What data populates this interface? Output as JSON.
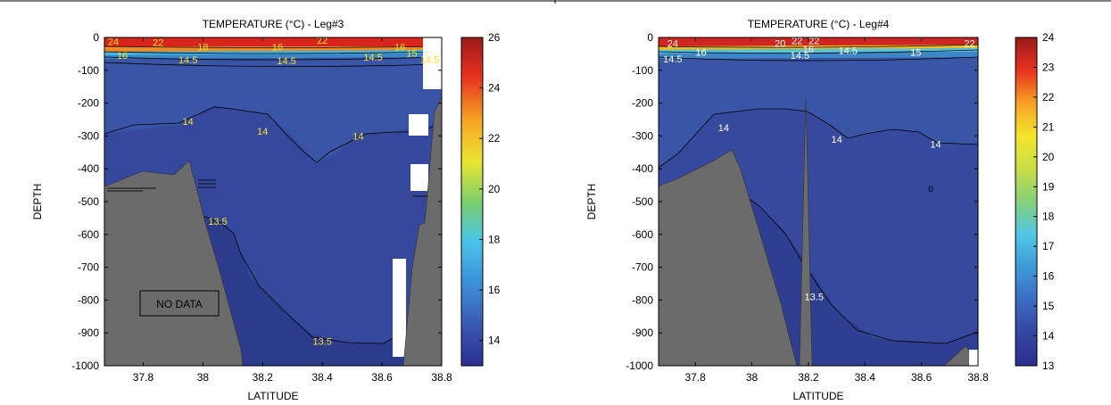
{
  "chart_data": [
    {
      "type": "heatmap",
      "title": "TEMPERATURE (°C) - Leg#3",
      "xlabel": "LATITUDE",
      "ylabel": "DEPTH",
      "xlim": [
        37.67,
        38.8
      ],
      "ylim": [
        -1000,
        0
      ],
      "xticks": [
        "37.8",
        "38",
        "38.2",
        "38.4",
        "38.6",
        "38.8"
      ],
      "yticks": [
        "0",
        "-100",
        "-200",
        "-300",
        "-400",
        "-500",
        "-600",
        "-700",
        "-800",
        "-900",
        "-1000"
      ],
      "colorbar": {
        "range": [
          13,
          26
        ],
        "ticks": [
          "26",
          "24",
          "22",
          "20",
          "18",
          "16",
          "14"
        ]
      },
      "annotation": "NO DATA",
      "contour_labels": [
        {
          "text": "24",
          "x": 37.7,
          "y": -12
        },
        {
          "text": "22",
          "x": 37.85,
          "y": -15
        },
        {
          "text": "18",
          "x": 38.0,
          "y": -28
        },
        {
          "text": "16",
          "x": 38.25,
          "y": -28
        },
        {
          "text": "22",
          "x": 38.4,
          "y": -8
        },
        {
          "text": "16",
          "x": 37.73,
          "y": -55
        },
        {
          "text": "14.5",
          "x": 37.95,
          "y": -68
        },
        {
          "text": "14.5",
          "x": 38.28,
          "y": -70
        },
        {
          "text": "14.5",
          "x": 38.57,
          "y": -60
        },
        {
          "text": "16",
          "x": 38.66,
          "y": -28
        },
        {
          "text": "15",
          "x": 38.7,
          "y": -48
        },
        {
          "text": "14.5",
          "x": 38.76,
          "y": -66
        },
        {
          "text": "14",
          "x": 37.95,
          "y": -255
        },
        {
          "text": "14",
          "x": 38.2,
          "y": -285
        },
        {
          "text": "14",
          "x": 38.52,
          "y": -300
        },
        {
          "text": "13.5",
          "x": 38.05,
          "y": -560
        },
        {
          "text": "13.5",
          "x": 38.4,
          "y": -925
        }
      ]
    },
    {
      "type": "heatmap",
      "title": "TEMPERATURE (°C) - Leg#4",
      "xlabel": "LATITUDE",
      "ylabel": "DEPTH",
      "xlim": [
        37.67,
        38.8
      ],
      "ylim": [
        -1000,
        0
      ],
      "xticks": [
        "37.8",
        "38",
        "38.2",
        "38.4",
        "38.6",
        "38.8"
      ],
      "yticks": [
        "0",
        "-100",
        "-200",
        "-300",
        "-400",
        "-500",
        "-600",
        "-700",
        "-800",
        "-900",
        "-1000"
      ],
      "colorbar": {
        "range": [
          13,
          24
        ],
        "ticks": [
          "24",
          "23",
          "22",
          "21",
          "20",
          "19",
          "18",
          "17",
          "16",
          "15",
          "14",
          "13"
        ]
      },
      "contour_labels": [
        {
          "text": "24",
          "x": 37.72,
          "y": -18
        },
        {
          "text": "16",
          "x": 37.82,
          "y": -45
        },
        {
          "text": "14.5",
          "x": 37.72,
          "y": -65
        },
        {
          "text": "20",
          "x": 38.1,
          "y": -18
        },
        {
          "text": "22",
          "x": 38.16,
          "y": -10
        },
        {
          "text": "22",
          "x": 38.22,
          "y": -10
        },
        {
          "text": "16",
          "x": 38.2,
          "y": -35
        },
        {
          "text": "14.5",
          "x": 38.17,
          "y": -55
        },
        {
          "text": "14.5",
          "x": 38.34,
          "y": -40
        },
        {
          "text": "15",
          "x": 38.58,
          "y": -45
        },
        {
          "text": "22",
          "x": 38.77,
          "y": -18
        },
        {
          "text": "14",
          "x": 37.9,
          "y": -275
        },
        {
          "text": "14",
          "x": 38.3,
          "y": -310
        },
        {
          "text": "14",
          "x": 38.65,
          "y": -325
        },
        {
          "text": "13.5",
          "x": 38.22,
          "y": -790
        }
      ]
    }
  ]
}
